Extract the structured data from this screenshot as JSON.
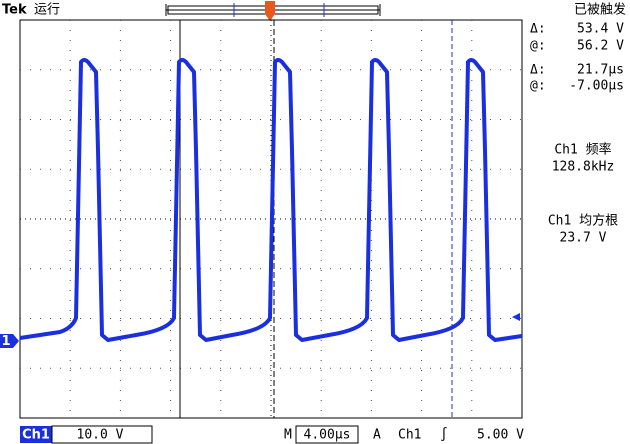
{
  "header": {
    "brand": "Tek",
    "status": "运行",
    "trigger_state": "已被触发",
    "trigger_marker": "T"
  },
  "readouts": {
    "voltage_cursor": {
      "delta_label": "Δ:",
      "delta": "53.4 V",
      "at_label": "@:",
      "at": "56.2 V"
    },
    "time_cursor": {
      "delta_label": "Δ:",
      "delta": "21.7µs",
      "at_label": "@:",
      "at": "-7.00µs"
    },
    "measure_1": {
      "label": "Ch1 频率",
      "value": "128.8kHz"
    },
    "measure_2": {
      "label": "Ch1 均方根",
      "value": "23.7 V"
    }
  },
  "channel_marker": "1",
  "footer": {
    "channel": "Ch1",
    "scale": "10.0 V",
    "time_label": "M",
    "time": "4.00µs",
    "trigger_label": "A",
    "trigger_source": "Ch1",
    "trigger_slope": "∫",
    "trigger_level": "5.00 V"
  }
}
